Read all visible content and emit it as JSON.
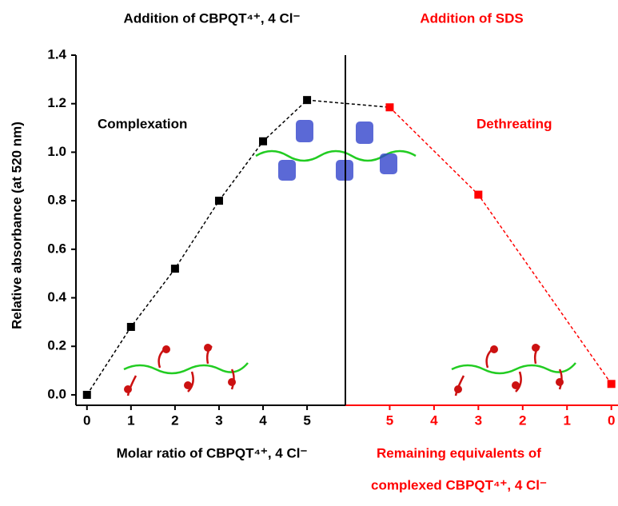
{
  "chart_data": {
    "type": "line",
    "title_left": "Addition of CBPQT⁴⁺, 4 Cl⁻",
    "title_right": "Addition of SDS",
    "y_label": "Relative absorbance (at 520 nm)",
    "x_label": "Molar ratio of CBPQT⁴⁺, 4 Cl⁻",
    "x2_label": [
      "Remaining equivalents of",
      "complexed CBPQT⁴⁺, 4 Cl⁻"
    ],
    "annotations": [
      "Complexation",
      "Dethreating"
    ],
    "ylim": [
      -0.043,
      1.4
    ],
    "yticks": [
      {
        "value": 0,
        "label": "0.0"
      },
      0.2,
      0.4,
      0.6,
      0.8,
      {
        "value": 1,
        "label": "1.0"
      },
      1.2,
      1.4
    ],
    "xlim": [
      -0.25,
      5.87
    ],
    "xticks": [
      0,
      1,
      2,
      3,
      4,
      5
    ],
    "x2lim": [
      6.0,
      -0.15
    ],
    "x2ticks": [
      5,
      4,
      3,
      2,
      1,
      0
    ],
    "series": [
      {
        "color": "#000000",
        "x": [
          0,
          1,
          2,
          3,
          4,
          5
        ],
        "values": [
          0.0,
          0.28,
          0.52,
          0.8,
          1.045,
          1.215
        ]
      },
      {
        "color": "#ff0000",
        "axis": "x2",
        "x": [
          5,
          3,
          0
        ],
        "values": [
          1.185,
          0.825,
          0.045
        ]
      }
    ]
  }
}
